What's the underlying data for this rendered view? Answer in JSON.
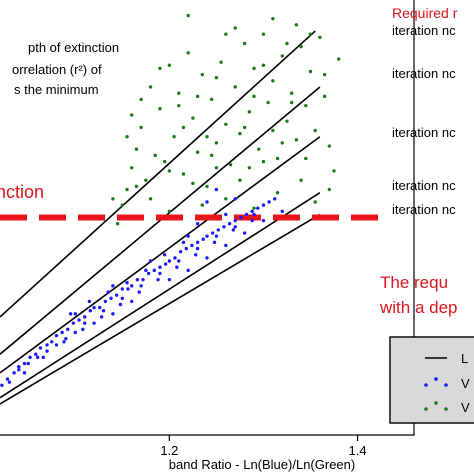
{
  "chart_data": {
    "type": "scatter",
    "title": "",
    "xlabel": "band Ratio - Ln(Blue)/Ln(Green)",
    "ylabel": "",
    "xlim": [
      1.02,
      1.46
    ],
    "ylim": [
      0,
      14
    ],
    "x_ticks": [
      {
        "value": 1.2,
        "label": "1.2"
      },
      {
        "value": 1.4,
        "label": "1.4"
      }
    ],
    "grid": false,
    "legend_position": "bottom-right",
    "legend": [
      {
        "name": "L",
        "marker": "line",
        "color": "#000000"
      },
      {
        "name": "V",
        "marker": "dots",
        "color": "#1a1aff"
      },
      {
        "name": "V",
        "marker": "dots",
        "color": "#1a7a1a"
      }
    ],
    "threshold": {
      "y": 7.0,
      "label": "nction",
      "color": "#e8161b"
    },
    "lines": [
      {
        "label": "iteration nc",
        "x": [
          1.02,
          1.355
        ],
        "y": [
          3.8,
          13.0
        ]
      },
      {
        "label": "iteration nc",
        "x": [
          1.02,
          1.36
        ],
        "y": [
          2.6,
          11.2
        ]
      },
      {
        "label": "iteration nc",
        "x": [
          1.02,
          1.36
        ],
        "y": [
          2.0,
          9.6
        ]
      },
      {
        "label": "iteration nc",
        "x": [
          1.02,
          1.36
        ],
        "y": [
          1.2,
          7.8
        ]
      },
      {
        "label": "iteration nc",
        "x": [
          1.02,
          1.36
        ],
        "y": [
          1.0,
          7.1
        ]
      }
    ],
    "series": [
      {
        "color": "#1a1aff",
        "points": [
          [
            1.022,
            1.6
          ],
          [
            1.028,
            1.8
          ],
          [
            1.035,
            2.0
          ],
          [
            1.04,
            2.2
          ],
          [
            1.046,
            2.3
          ],
          [
            1.052,
            2.5
          ],
          [
            1.058,
            2.6
          ],
          [
            1.063,
            2.8
          ],
          [
            1.07,
            2.9
          ],
          [
            1.075,
            3.0
          ],
          [
            1.08,
            3.2
          ],
          [
            1.086,
            3.3
          ],
          [
            1.092,
            3.4
          ],
          [
            1.098,
            3.6
          ],
          [
            1.104,
            3.7
          ],
          [
            1.11,
            3.8
          ],
          [
            1.116,
            4.0
          ],
          [
            1.12,
            4.1
          ],
          [
            1.126,
            4.1
          ],
          [
            1.132,
            4.3
          ],
          [
            1.138,
            4.4
          ],
          [
            1.144,
            4.5
          ],
          [
            1.15,
            4.7
          ],
          [
            1.156,
            4.7
          ],
          [
            1.16,
            4.8
          ],
          [
            1.166,
            5.0
          ],
          [
            1.172,
            5.0
          ],
          [
            1.178,
            5.2
          ],
          [
            1.184,
            5.3
          ],
          [
            1.19,
            5.4
          ],
          [
            1.196,
            5.5
          ],
          [
            1.2,
            5.6
          ],
          [
            1.206,
            5.7
          ],
          [
            1.212,
            5.9
          ],
          [
            1.218,
            6.0
          ],
          [
            1.224,
            6.1
          ],
          [
            1.23,
            6.2
          ],
          [
            1.236,
            6.3
          ],
          [
            1.24,
            6.4
          ],
          [
            1.246,
            6.5
          ],
          [
            1.252,
            6.6
          ],
          [
            1.258,
            6.7
          ],
          [
            1.264,
            6.8
          ],
          [
            1.27,
            6.9
          ],
          [
            1.276,
            7.0
          ],
          [
            1.282,
            7.1
          ],
          [
            1.288,
            7.2
          ],
          [
            1.294,
            7.3
          ],
          [
            1.3,
            7.4
          ],
          [
            1.306,
            7.5
          ],
          [
            1.312,
            7.6
          ],
          [
            1.03,
            1.7
          ],
          [
            1.05,
            2.3
          ],
          [
            1.07,
            2.7
          ],
          [
            1.09,
            3.1
          ],
          [
            1.11,
            3.6
          ],
          [
            1.13,
            4.0
          ],
          [
            1.15,
            4.4
          ],
          [
            1.17,
            4.8
          ],
          [
            1.19,
            5.2
          ],
          [
            1.21,
            5.6
          ],
          [
            1.23,
            6.0
          ],
          [
            1.25,
            6.4
          ],
          [
            1.27,
            6.7
          ],
          [
            1.29,
            7.1
          ],
          [
            1.046,
            2.0
          ],
          [
            1.066,
            2.5
          ],
          [
            1.088,
            3.0
          ],
          [
            1.108,
            3.4
          ],
          [
            1.128,
            3.8
          ],
          [
            1.148,
            4.2
          ],
          [
            1.168,
            4.6
          ],
          [
            1.188,
            5.0
          ],
          [
            1.208,
            5.4
          ],
          [
            1.228,
            5.8
          ],
          [
            1.248,
            6.2
          ],
          [
            1.268,
            6.6
          ],
          [
            1.288,
            6.9
          ],
          [
            1.1,
            3.9
          ],
          [
            1.14,
            4.8
          ],
          [
            1.18,
            5.6
          ],
          [
            1.22,
            6.4
          ],
          [
            1.26,
            7.1
          ],
          [
            1.24,
            7.5
          ],
          [
            1.25,
            7.9
          ],
          [
            1.27,
            7.6
          ],
          [
            1.23,
            6.8
          ],
          [
            1.215,
            6.2
          ],
          [
            1.195,
            5.8
          ],
          [
            1.175,
            5.3
          ],
          [
            1.155,
            4.9
          ],
          [
            1.135,
            4.6
          ],
          [
            1.115,
            4.3
          ],
          [
            1.095,
            3.9
          ],
          [
            1.2,
            5.0
          ],
          [
            1.22,
            5.3
          ],
          [
            1.24,
            5.7
          ],
          [
            1.26,
            6.1
          ],
          [
            1.28,
            6.5
          ],
          [
            1.3,
            6.9
          ],
          [
            1.32,
            7.2
          ],
          [
            1.16,
            4.3
          ],
          [
            1.14,
            3.9
          ],
          [
            1.12,
            3.6
          ],
          [
            1.1,
            3.3
          ],
          [
            1.08,
            2.9
          ],
          [
            1.06,
            2.5
          ],
          [
            1.04,
            2.1
          ]
        ]
      },
      {
        "color": "#1a7a1a",
        "points": [
          [
            1.145,
            6.8
          ],
          [
            1.15,
            7.4
          ],
          [
            1.155,
            7.9
          ],
          [
            1.16,
            8.6
          ],
          [
            1.165,
            9.2
          ],
          [
            1.17,
            9.9
          ],
          [
            1.175,
            8.2
          ],
          [
            1.18,
            7.6
          ],
          [
            1.185,
            9.0
          ],
          [
            1.19,
            10.5
          ],
          [
            1.195,
            8.8
          ],
          [
            1.2,
            7.2
          ],
          [
            1.205,
            9.6
          ],
          [
            1.21,
            11.0
          ],
          [
            1.215,
            8.4
          ],
          [
            1.22,
            12.3
          ],
          [
            1.225,
            10.2
          ],
          [
            1.23,
            9.1
          ],
          [
            1.235,
            11.6
          ],
          [
            1.24,
            8.0
          ],
          [
            1.245,
            10.8
          ],
          [
            1.25,
            9.4
          ],
          [
            1.255,
            12.0
          ],
          [
            1.26,
            10.0
          ],
          [
            1.265,
            8.7
          ],
          [
            1.27,
            11.2
          ],
          [
            1.275,
            9.7
          ],
          [
            1.28,
            12.6
          ],
          [
            1.285,
            10.4
          ],
          [
            1.29,
            11.8
          ],
          [
            1.295,
            9.2
          ],
          [
            1.3,
            12.9
          ],
          [
            1.305,
            10.7
          ],
          [
            1.31,
            11.4
          ],
          [
            1.315,
            8.9
          ],
          [
            1.32,
            12.2
          ],
          [
            1.325,
            10.1
          ],
          [
            1.33,
            11.0
          ],
          [
            1.335,
            9.5
          ],
          [
            1.34,
            12.5
          ],
          [
            1.345,
            10.6
          ],
          [
            1.35,
            11.7
          ],
          [
            1.355,
            9.8
          ],
          [
            1.36,
            12.8
          ],
          [
            1.365,
            10.9
          ],
          [
            1.37,
            9.3
          ],
          [
            1.375,
            8.5
          ],
          [
            1.38,
            12.1
          ],
          [
            1.335,
            13.2
          ],
          [
            1.31,
            13.4
          ],
          [
            1.26,
            12.9
          ],
          [
            1.22,
            13.5
          ],
          [
            1.27,
            13.1
          ],
          [
            1.19,
            11.8
          ],
          [
            1.17,
            10.8
          ],
          [
            1.155,
            9.6
          ],
          [
            1.2,
            8.5
          ],
          [
            1.235,
            7.4
          ],
          [
            1.26,
            7.6
          ],
          [
            1.29,
            7.3
          ],
          [
            1.315,
            7.8
          ],
          [
            1.34,
            8.2
          ],
          [
            1.355,
            7.5
          ],
          [
            1.37,
            7.9
          ],
          [
            1.345,
            8.9
          ],
          [
            1.31,
            9.8
          ],
          [
            1.285,
            8.6
          ],
          [
            1.245,
            9.0
          ],
          [
            1.215,
            9.9
          ],
          [
            1.165,
            8.0
          ],
          [
            1.14,
            7.6
          ],
          [
            1.23,
            10.9
          ],
          [
            1.25,
            11.5
          ],
          [
            1.29,
            10.9
          ],
          [
            1.3,
            11.9
          ],
          [
            1.325,
            12.6
          ],
          [
            1.35,
            12.9
          ],
          [
            1.365,
            11.6
          ],
          [
            1.33,
            10.7
          ],
          [
            1.28,
            9.9
          ],
          [
            1.24,
            9.6
          ],
          [
            1.21,
            10.6
          ],
          [
            1.18,
            11.2
          ],
          [
            1.2,
            11.9
          ],
          [
            1.32,
            9.4
          ],
          [
            1.3,
            8.8
          ],
          [
            1.275,
            8.2
          ],
          [
            1.25,
            8.6
          ],
          [
            1.225,
            8.1
          ],
          [
            1.16,
            10.3
          ]
        ]
      }
    ]
  },
  "texts": {
    "top_right": "Required r",
    "explain_1": "pth of extinction",
    "explain_2": "orrelation (r²) of",
    "explain_3": "s the minimum",
    "requirement_1": "The requ",
    "requirement_2": "with a dep"
  }
}
